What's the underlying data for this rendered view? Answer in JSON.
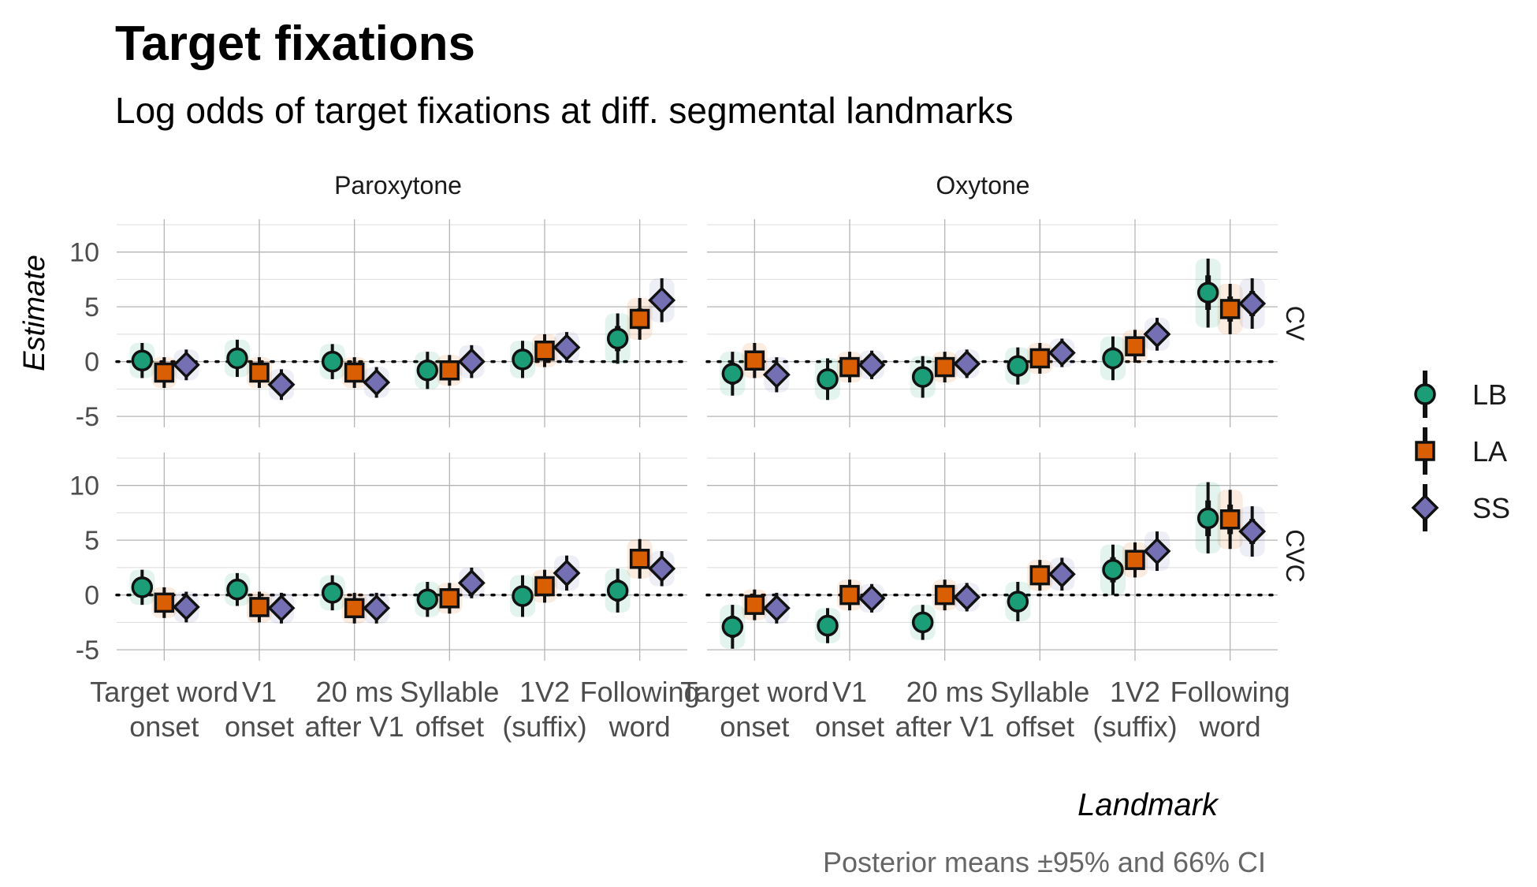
{
  "chart_data": {
    "type": "scatter",
    "title": "Target fixations",
    "subtitle": "Log odds of target fixations at diff. segmental landmarks",
    "xlabel": "Landmark",
    "ylabel": "Estimate",
    "caption": "Posterior means ±95% and 66% CI",
    "ylim": [
      -6,
      13
    ],
    "y_ticks": [
      "-5",
      "0",
      "5",
      "10"
    ],
    "y_tick_values": [
      -5,
      0,
      5,
      10
    ],
    "reference_line_y": 0,
    "grid": true,
    "legend_position": "right",
    "categories": [
      [
        "Target word",
        "onset"
      ],
      [
        "V1",
        "onset"
      ],
      [
        "20 ms",
        "after V1"
      ],
      [
        "Syllable",
        "offset"
      ],
      [
        "1V2",
        "(suffix)"
      ],
      [
        "Following",
        "word"
      ]
    ],
    "facet_columns": [
      "Paroxytone",
      "Oxytone"
    ],
    "facet_rows": [
      "CV",
      "CVC"
    ],
    "series": [
      {
        "name": "LB",
        "color": "#1b9e77",
        "shape": "circle"
      },
      {
        "name": "LA",
        "color": "#d95f02",
        "shape": "square"
      },
      {
        "name": "SS",
        "color": "#7570b3",
        "shape": "diamond"
      }
    ],
    "panels": [
      {
        "column": "Paroxytone",
        "row": "CV",
        "values": {
          "LB": [
            0.1,
            0.3,
            0.0,
            -0.8,
            0.2,
            2.1
          ],
          "LA": [
            -1.0,
            -1.0,
            -1.0,
            -0.8,
            1.0,
            3.9
          ],
          "SS": [
            -0.3,
            -2.1,
            -1.9,
            0.0,
            1.3,
            5.6
          ]
        },
        "ci95": {
          "LB": [
            [
              -1.5,
              1.7
            ],
            [
              -1.4,
              2.0
            ],
            [
              -1.6,
              1.6
            ],
            [
              -2.5,
              0.9
            ],
            [
              -1.5,
              1.9
            ],
            [
              -0.2,
              4.4
            ]
          ],
          "LA": [
            [
              -2.4,
              0.4
            ],
            [
              -2.4,
              0.4
            ],
            [
              -2.4,
              0.4
            ],
            [
              -2.2,
              0.6
            ],
            [
              -0.5,
              2.5
            ],
            [
              2.0,
              5.8
            ]
          ],
          "SS": [
            [
              -1.7,
              1.1
            ],
            [
              -3.5,
              -0.7
            ],
            [
              -3.3,
              -0.5
            ],
            [
              -1.5,
              1.5
            ],
            [
              -0.1,
              2.7
            ],
            [
              3.6,
              7.6
            ]
          ]
        }
      },
      {
        "column": "Oxytone",
        "row": "CV",
        "values": {
          "LB": [
            -1.1,
            -1.6,
            -1.4,
            -0.4,
            0.3,
            6.3
          ],
          "LA": [
            0.1,
            -0.5,
            -0.5,
            0.3,
            1.4,
            4.8
          ],
          "SS": [
            -1.2,
            -0.3,
            -0.2,
            0.8,
            2.5,
            5.3
          ]
        },
        "ci95": {
          "LB": [
            [
              -3.1,
              0.9
            ],
            [
              -3.5,
              0.3
            ],
            [
              -3.3,
              0.5
            ],
            [
              -2.1,
              1.3
            ],
            [
              -1.7,
              2.3
            ],
            [
              3.1,
              9.4
            ]
          ],
          "LA": [
            [
              -1.5,
              1.7
            ],
            [
              -1.9,
              0.9
            ],
            [
              -1.9,
              0.9
            ],
            [
              -1.1,
              1.7
            ],
            [
              -0.1,
              2.9
            ],
            [
              2.5,
              7.1
            ]
          ],
          "SS": [
            [
              -2.8,
              0.4
            ],
            [
              -1.6,
              1.0
            ],
            [
              -1.5,
              1.1
            ],
            [
              -0.5,
              2.1
            ],
            [
              1.0,
              4.0
            ],
            [
              3.0,
              7.6
            ]
          ]
        }
      },
      {
        "column": "Paroxytone",
        "row": "CVC",
        "values": {
          "LB": [
            0.7,
            0.5,
            0.2,
            -0.4,
            -0.1,
            0.4
          ],
          "LA": [
            -0.7,
            -1.1,
            -1.2,
            -0.3,
            0.8,
            3.3
          ],
          "SS": [
            -1.1,
            -1.2,
            -1.2,
            1.1,
            2.0,
            2.4
          ]
        },
        "ci95": {
          "LB": [
            [
              -0.9,
              2.3
            ],
            [
              -1.0,
              2.0
            ],
            [
              -1.4,
              1.8
            ],
            [
              -2.0,
              1.2
            ],
            [
              -2.0,
              1.8
            ],
            [
              -1.6,
              2.4
            ]
          ],
          "LA": [
            [
              -2.1,
              0.7
            ],
            [
              -2.5,
              0.3
            ],
            [
              -2.6,
              0.2
            ],
            [
              -1.7,
              1.1
            ],
            [
              -0.7,
              2.3
            ],
            [
              1.5,
              5.1
            ]
          ],
          "SS": [
            [
              -2.5,
              0.3
            ],
            [
              -2.6,
              0.2
            ],
            [
              -2.6,
              0.2
            ],
            [
              -0.3,
              2.5
            ],
            [
              0.4,
              3.6
            ],
            [
              0.8,
              4.0
            ]
          ]
        }
      },
      {
        "column": "Oxytone",
        "row": "CVC",
        "values": {
          "LB": [
            -2.9,
            -2.8,
            -2.5,
            -0.6,
            2.3,
            7.0
          ],
          "LA": [
            -0.9,
            0.0,
            0.0,
            1.8,
            3.2,
            6.9
          ],
          "SS": [
            -1.2,
            -0.3,
            -0.2,
            1.9,
            4.0,
            5.8
          ]
        },
        "ci95": {
          "LB": [
            [
              -4.9,
              -0.9
            ],
            [
              -4.4,
              -1.2
            ],
            [
              -4.1,
              -0.9
            ],
            [
              -2.4,
              1.2
            ],
            [
              0.0,
              4.6
            ],
            [
              3.8,
              10.3
            ]
          ],
          "LA": [
            [
              -2.3,
              0.5
            ],
            [
              -1.4,
              1.4
            ],
            [
              -1.4,
              1.4
            ],
            [
              0.4,
              3.2
            ],
            [
              1.6,
              4.8
            ],
            [
              4.2,
              9.6
            ]
          ],
          "SS": [
            [
              -2.6,
              0.2
            ],
            [
              -1.6,
              1.0
            ],
            [
              -1.5,
              1.1
            ],
            [
              0.4,
              3.4
            ],
            [
              2.2,
              5.8
            ],
            [
              3.5,
              8.1
            ]
          ]
        }
      }
    ]
  }
}
